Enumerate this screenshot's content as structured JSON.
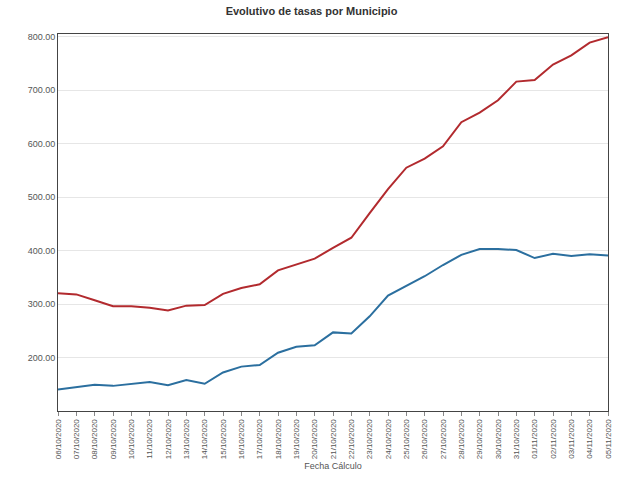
{
  "chart_data": {
    "type": "line",
    "title": "Evolutivo de tasas por Municipio",
    "x_label": "Fecha Cálculo",
    "categories": [
      "06/10/2020",
      "07/10/2020",
      "08/10/2020",
      "09/10/2020",
      "10/10/2020",
      "11/10/2020",
      "12/10/2020",
      "13/10/2020",
      "14/10/2020",
      "15/10/2020",
      "16/10/2020",
      "17/10/2020",
      "18/10/2020",
      "19/10/2020",
      "20/10/2020",
      "21/10/2020",
      "22/10/2020",
      "23/10/2020",
      "24/10/2020",
      "25/10/2020",
      "26/10/2020",
      "27/10/2020",
      "28/10/2020",
      "29/10/2020",
      "30/10/2020",
      "31/10/2020",
      "01/11/2020",
      "02/11/2020",
      "03/11/2020",
      "04/11/2020",
      "05/11/2020"
    ],
    "series": [
      {
        "color": "#b22a2e",
        "values": [
          320,
          318,
          307,
          296,
          296,
          293,
          288,
          297,
          298,
          319,
          330,
          337,
          363,
          374,
          385,
          405,
          424,
          470,
          515,
          555,
          572,
          595,
          640,
          658,
          681,
          716,
          719,
          748,
          765,
          789,
          799
        ]
      },
      {
        "color": "#2b6f9f",
        "values": [
          140,
          145,
          149,
          147,
          150,
          154,
          148,
          158,
          151,
          172,
          183,
          186,
          209,
          220,
          223,
          247,
          245,
          277,
          316,
          334,
          352,
          373,
          392,
          403,
          403,
          401,
          386,
          394,
          390,
          393,
          391
        ]
      }
    ],
    "ylim": [
      100,
      805
    ],
    "yticks": [
      {
        "value": 200,
        "label": "200.00"
      },
      {
        "value": 300,
        "label": "300.00"
      },
      {
        "value": 400,
        "label": "400.00"
      },
      {
        "value": 500,
        "label": "500.00"
      },
      {
        "value": 600,
        "label": "600.00"
      },
      {
        "value": 700,
        "label": "700.00"
      },
      {
        "value": 800,
        "label": "800.00"
      }
    ],
    "grid": true
  }
}
